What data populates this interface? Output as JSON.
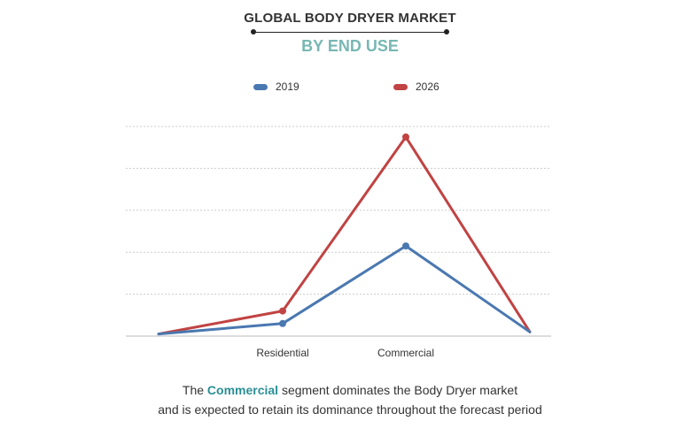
{
  "header": {
    "title": "GLOBAL BODY DRYER MARKET",
    "subtitle": "BY END USE"
  },
  "colors": {
    "series_2019": "#4a78b0",
    "series_2026": "#c14343",
    "subtitle": "#78b7b3",
    "highlight": "#2a8f95",
    "grid": "#cccccc"
  },
  "chart_data": {
    "type": "line",
    "categories": [
      "",
      "Residential",
      "Commercial",
      ""
    ],
    "series": [
      {
        "name": "2019",
        "values": [
          1,
          6,
          43,
          2
        ]
      },
      {
        "name": "2026",
        "values": [
          1,
          12,
          95,
          2
        ]
      }
    ],
    "ylim": [
      0,
      100
    ],
    "grid": true,
    "y_tick_labels_shown": false,
    "legend_position": "top-center"
  },
  "caption": {
    "prefix": "The ",
    "highlight": "Commercial",
    "line1_rest": " segment dominates the Body Dryer market",
    "line2": "and is expected to retain its dominance throughout the forecast period"
  }
}
